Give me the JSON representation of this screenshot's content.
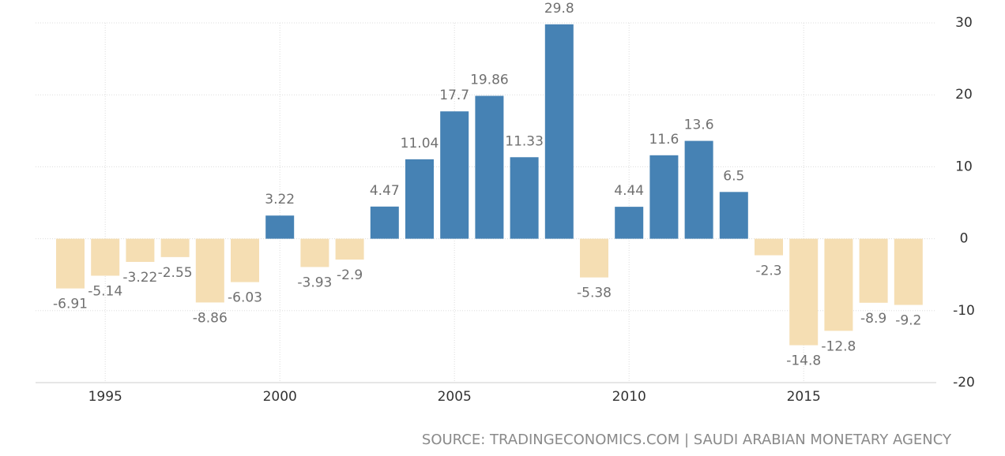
{
  "chart_data": {
    "type": "bar",
    "categories": [
      null,
      "1995",
      null,
      null,
      null,
      null,
      "2000",
      null,
      null,
      null,
      null,
      "2005",
      null,
      null,
      null,
      null,
      "2010",
      null,
      null,
      null,
      null,
      "2015",
      null,
      null,
      null
    ],
    "values": [
      -6.91,
      -5.14,
      -3.22,
      -2.55,
      -8.86,
      -6.03,
      3.22,
      -3.93,
      -2.9,
      4.47,
      11.04,
      17.7,
      19.86,
      11.33,
      29.8,
      -5.38,
      4.44,
      11.6,
      13.6,
      6.5,
      -2.3,
      -14.8,
      -12.8,
      -8.9,
      -9.2
    ],
    "color": "#4682b4",
    "negative_color": "#f5deb3",
    "ylim": [
      -20,
      30
    ],
    "yticks": [
      -20,
      -10,
      0,
      10,
      20,
      30
    ],
    "grid": true,
    "source": "SOURCE: TRADINGECONOMICS.COM | SAUDI ARABIAN MONETARY AGENCY"
  }
}
